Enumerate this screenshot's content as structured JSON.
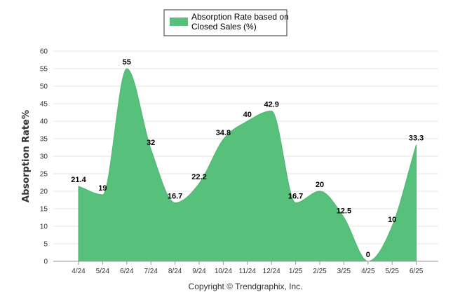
{
  "chart_data": {
    "type": "area",
    "categories": [
      "4/24",
      "5/24",
      "6/24",
      "7/24",
      "8/24",
      "9/24",
      "10/24",
      "11/24",
      "12/24",
      "1/25",
      "2/25",
      "3/25",
      "4/25",
      "5/25",
      "6/25"
    ],
    "series": [
      {
        "name": "Absorption Rate based on Closed Sales (%)",
        "name_lines": [
          "Absorption Rate based on",
          "Closed Sales (%)"
        ],
        "values": [
          21.4,
          19,
          55,
          32,
          16.7,
          22.2,
          34.8,
          40,
          42.9,
          16.7,
          20,
          12.5,
          0,
          10,
          33.3
        ],
        "labels": [
          "21.4",
          "19",
          "55",
          "32",
          "16.7",
          "22.2",
          "34.8",
          "40",
          "42.9",
          "16.7",
          "20",
          "12.5",
          "0",
          "10",
          "33.3"
        ],
        "color": "#57c07a"
      }
    ],
    "ylabel": "Absorption Rate%",
    "xlabel": "",
    "ylim": [
      0,
      60
    ],
    "yticks": [
      0,
      5,
      10,
      15,
      20,
      25,
      30,
      35,
      40,
      45,
      50,
      55,
      60
    ],
    "grid": true,
    "legend_position": "top-center"
  },
  "footer": "Copyright © Trendgraphix, Inc."
}
